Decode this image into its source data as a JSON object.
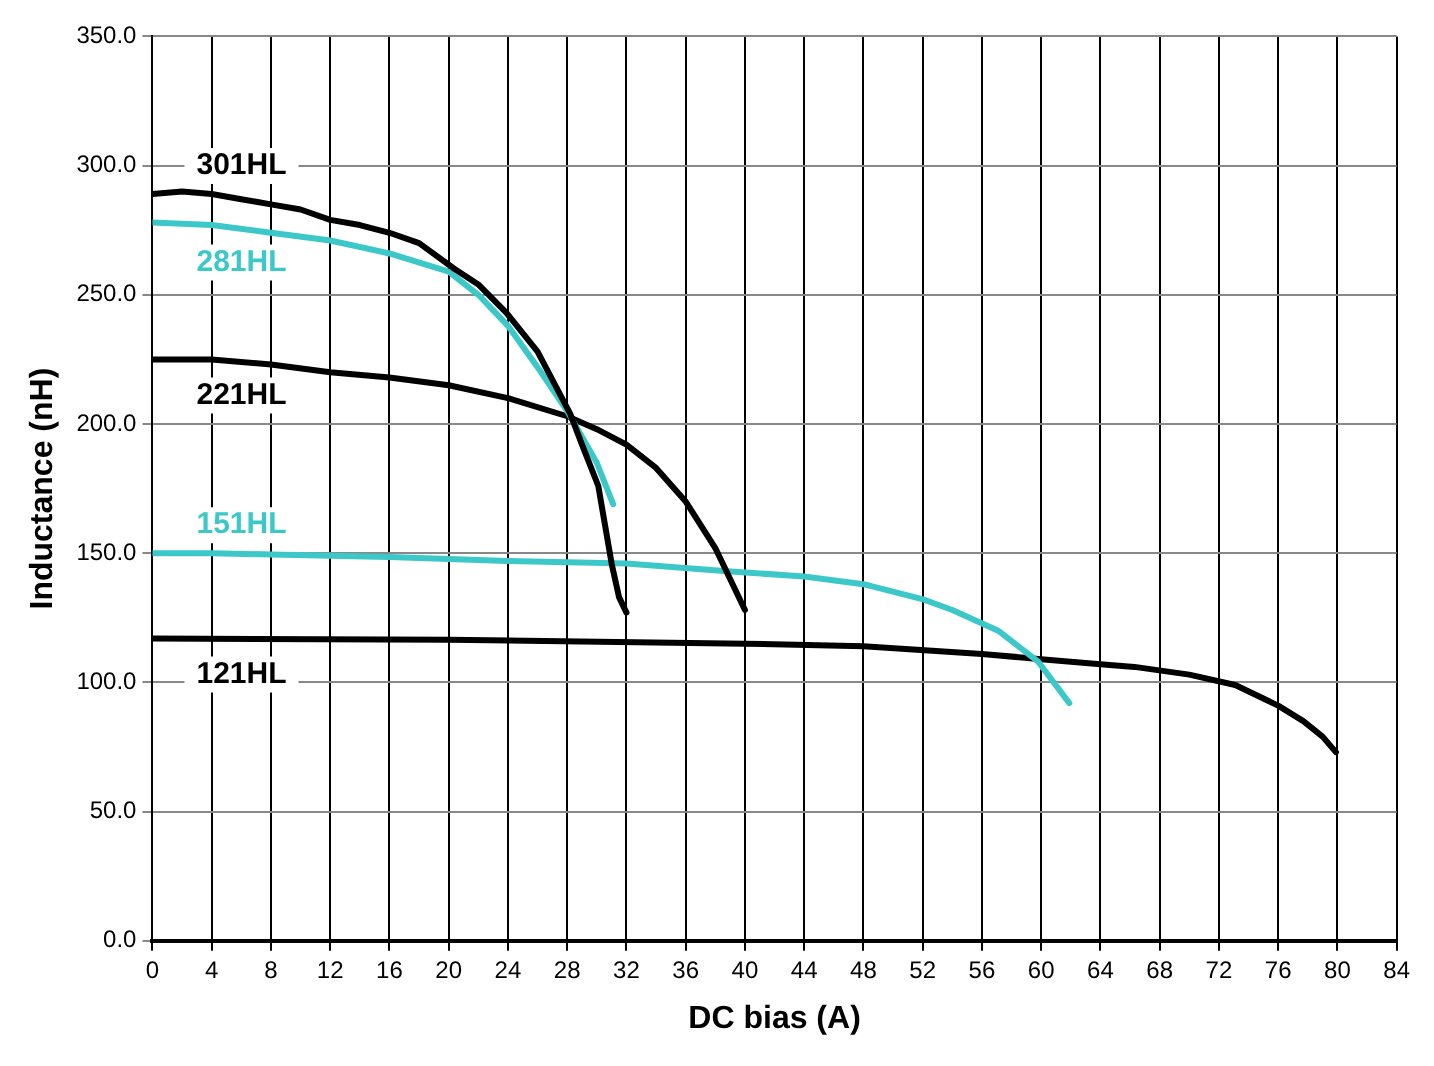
{
  "chart_data": {
    "type": "line",
    "xlabel": "DC bias (A)",
    "ylabel": "Inductance (nH)",
    "series": [
      {
        "name": "301HL",
        "color": "#000000",
        "x": [
          0,
          2,
          4,
          6,
          8,
          10,
          12,
          14,
          16,
          18,
          20.4,
          22,
          23.9,
          26,
          28.2,
          29,
          30.1,
          31,
          31.5,
          32
        ],
        "values": [
          289,
          290,
          289,
          287,
          285,
          283,
          279,
          277,
          274,
          270,
          260,
          254,
          243,
          228,
          204,
          192,
          176,
          146,
          133,
          127
        ]
      },
      {
        "name": "281HL",
        "color": "#3cc8c8",
        "x": [
          0,
          4,
          8,
          12,
          16,
          20,
          22,
          24,
          26,
          28,
          30,
          31.1
        ],
        "values": [
          278,
          277,
          274,
          271,
          266,
          259,
          250,
          238,
          222,
          205,
          185,
          169
        ]
      },
      {
        "name": "221HL",
        "color": "#000000",
        "x": [
          0,
          4,
          8,
          12,
          16,
          20,
          24,
          28,
          30,
          32,
          34,
          36,
          38,
          39,
          40
        ],
        "values": [
          225,
          225,
          223,
          220,
          218,
          215,
          210,
          203,
          198,
          192,
          183,
          170,
          152,
          140,
          128
        ]
      },
      {
        "name": "151HL",
        "color": "#3cc8c8",
        "x": [
          0,
          4,
          8,
          16,
          24,
          32,
          38.8,
          44,
          48,
          52.1,
          54,
          57.1,
          59.8,
          61.9
        ],
        "values": [
          150,
          150,
          149.5,
          148.5,
          147,
          146,
          143,
          141,
          138,
          132,
          128,
          120,
          108,
          92
        ]
      },
      {
        "name": "121HL",
        "color": "#000000",
        "x": [
          0,
          20,
          40,
          48,
          56,
          60,
          64,
          66.3,
          70,
          73.1,
          76,
          77.7,
          79,
          79.9
        ],
        "values": [
          117,
          116.5,
          115,
          114,
          111,
          109,
          107,
          106,
          103,
          99,
          91,
          85,
          79,
          73
        ]
      }
    ],
    "xlim": [
      0,
      84
    ],
    "xticks": [
      0,
      4,
      8,
      12,
      16,
      20,
      24,
      28,
      32,
      36,
      40,
      44,
      48,
      52,
      56,
      60,
      64,
      68,
      72,
      76,
      80,
      84
    ],
    "ylim": [
      0,
      350
    ],
    "yticks": [
      {
        "value": 0,
        "label": "0.0"
      },
      {
        "value": 50,
        "label": "50.0"
      },
      {
        "value": 100,
        "label": "100.0"
      },
      {
        "value": 150,
        "label": "150.0"
      },
      {
        "value": 200,
        "label": "200.0"
      },
      {
        "value": 250,
        "label": "250.0"
      },
      {
        "value": 300,
        "label": "300.0"
      },
      {
        "value": 350,
        "label": "350.0"
      }
    ],
    "grid": true,
    "legend": false,
    "marker": "none",
    "line_style": "solid"
  }
}
